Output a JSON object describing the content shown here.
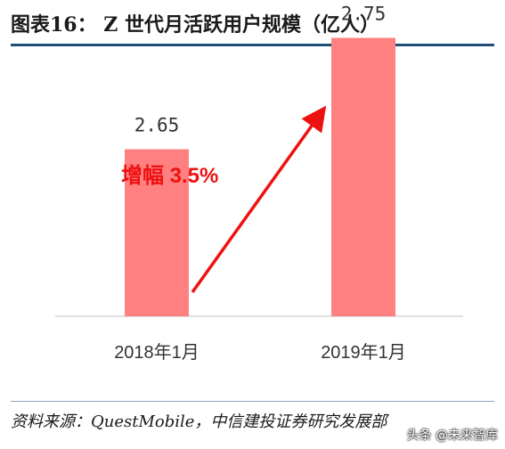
{
  "header": {
    "title": "图表16：  Z 世代月活跃用户规模（亿人）"
  },
  "chart_data": {
    "type": "bar",
    "categories": [
      "2018年1月",
      "2019年1月"
    ],
    "values": [
      2.65,
      2.75
    ],
    "data_labels": [
      "2.65",
      "2.75"
    ],
    "bar_color": "#ff8080",
    "ylim": [
      2.5,
      2.8
    ],
    "annotation": {
      "text": "增幅 3.5%",
      "color": "#ee1111"
    },
    "grid": false,
    "legend": "none"
  },
  "footer": {
    "source": "资料来源：QuestMobile，中信建投证券研究发展部",
    "watermark": "头条 @未来智库"
  }
}
